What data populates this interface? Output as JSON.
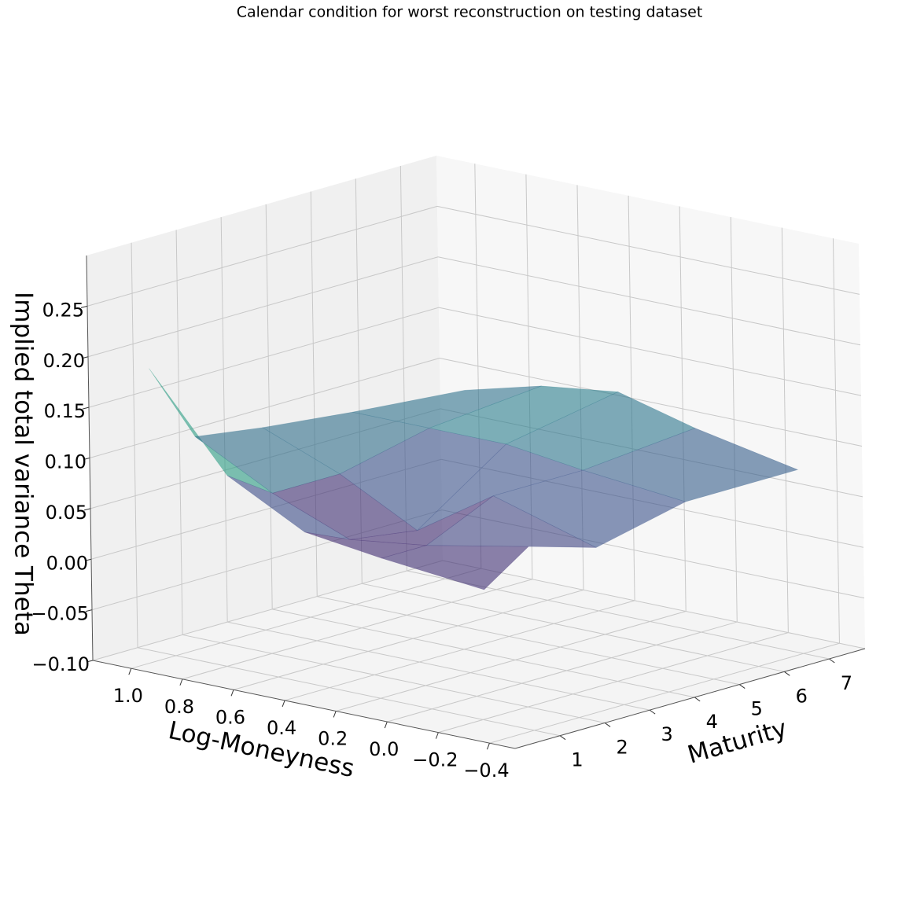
{
  "chart_data": {
    "type": "surface3d",
    "title": "Calendar condition for worst reconstruction on testing dataset",
    "xlabel": "Log-Moneyness",
    "ylabel": "Maturity",
    "zlabel": "Implied total variance Theta",
    "x": [
      1.0,
      0.7,
      0.4,
      0.1,
      -0.3
    ],
    "y": [
      0.5,
      1.5,
      3,
      5,
      7.5
    ],
    "z": [
      [
        0.19,
        0.1,
        0.06,
        0.05,
        0.04
      ],
      [
        0.11,
        0.07,
        0.04,
        0.05,
        0.07
      ],
      [
        0.1,
        0.07,
        0.03,
        0.08,
        0.05
      ],
      [
        0.09,
        0.09,
        0.09,
        0.08,
        0.07
      ],
      [
        0.08,
        0.1,
        0.11,
        0.09,
        0.07
      ]
    ],
    "xlim": [
      -0.5,
      1.15
    ],
    "ylim": [
      0,
      7.8
    ],
    "zlim": [
      -0.1,
      0.3
    ],
    "xticks": [
      {
        "value": 1,
        "label": "1.0"
      },
      0.8,
      0.6,
      0.4,
      0.2,
      {
        "value": 0,
        "label": "0.0"
      },
      {
        "value": -0.2,
        "label": "−0.2"
      },
      {
        "value": -0.4,
        "label": "−0.4"
      }
    ],
    "yticks": [
      1,
      2,
      3,
      4,
      5,
      6,
      7
    ],
    "zticks": [
      {
        "value": -0.1,
        "label": "−0.10"
      },
      {
        "value": -0.05,
        "label": "−0.05"
      },
      {
        "value": 0,
        "label": "0.00"
      },
      0.05,
      {
        "value": 0.1,
        "label": "0.10"
      },
      0.15,
      {
        "value": 0.2,
        "label": "0.20"
      },
      0.25
    ],
    "colormap": "viridis",
    "alpha": 0.6,
    "grid": true
  }
}
